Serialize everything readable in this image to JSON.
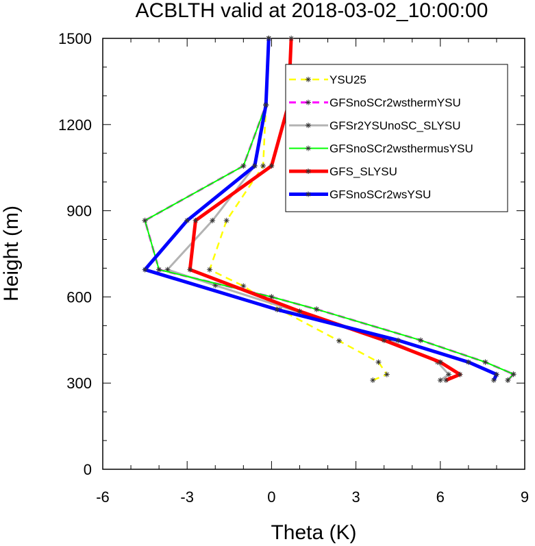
{
  "chart_data": {
    "type": "line",
    "title": "ACBLTH valid at 2018-03-02_10:00:00",
    "xlabel": "Theta (K)",
    "ylabel": "Height (m)",
    "xlim": [
      -6,
      9
    ],
    "ylim": [
      0,
      1500
    ],
    "xticks": [
      "-6",
      "-3",
      "0",
      "3",
      "6",
      "9"
    ],
    "yticks": [
      "0",
      "300",
      "600",
      "900",
      "1200",
      "1500"
    ],
    "grid": false,
    "legend_position": "top-right",
    "series": [
      {
        "name": "YSU25",
        "color": "#ffff00",
        "dash": "dashed",
        "width": 2.5,
        "points": [
          [
            3.6,
            310
          ],
          [
            4.1,
            330
          ],
          [
            3.8,
            373
          ],
          [
            2.4,
            447
          ],
          [
            0.3,
            556
          ],
          [
            -1.0,
            638
          ],
          [
            -2.2,
            695
          ],
          [
            -1.6,
            866
          ],
          [
            -0.3,
            1056
          ],
          [
            -0.2,
            1268
          ],
          [
            -0.1,
            1500
          ]
        ]
      },
      {
        "name": "GFSnoSCr2wsthermYSU",
        "color": "#ff00ff",
        "dash": "dashed",
        "width": 3,
        "points": [
          [
            8.4,
            310
          ],
          [
            8.6,
            331
          ],
          [
            7.6,
            373
          ],
          [
            5.3,
            449
          ],
          [
            1.6,
            557
          ],
          [
            0.0,
            600
          ],
          [
            -4.0,
            695
          ],
          [
            -4.5,
            866
          ],
          [
            -1.0,
            1056
          ],
          [
            -0.2,
            1268
          ],
          [
            -0.1,
            1500
          ]
        ]
      },
      {
        "name": "GFSr2YSUnoSC_SLYSU",
        "color": "#b3b3b3",
        "dash": "solid",
        "width": 3,
        "points": [
          [
            6.0,
            310
          ],
          [
            6.3,
            330
          ],
          [
            5.9,
            373
          ],
          [
            4.2,
            449
          ],
          [
            1.2,
            540
          ],
          [
            -2.0,
            640
          ],
          [
            -3.7,
            695
          ],
          [
            -2.1,
            866
          ],
          [
            -0.6,
            1056
          ],
          [
            -0.2,
            1268
          ],
          [
            -0.1,
            1500
          ]
        ]
      },
      {
        "name": "GFSnoSCr2wsthermusYSU",
        "color": "#00ff00",
        "dash": "solid",
        "width": 2,
        "points": [
          [
            8.4,
            310
          ],
          [
            8.6,
            331
          ],
          [
            7.6,
            373
          ],
          [
            5.3,
            449
          ],
          [
            1.6,
            557
          ],
          [
            0.0,
            600
          ],
          [
            -4.0,
            695
          ],
          [
            -4.5,
            866
          ],
          [
            -1.0,
            1056
          ],
          [
            -0.2,
            1268
          ],
          [
            -0.1,
            1500
          ]
        ]
      },
      {
        "name": "GFS_SLYSU",
        "color": "#ff0000",
        "dash": "solid",
        "width": 5,
        "points": [
          [
            6.2,
            310
          ],
          [
            6.7,
            330
          ],
          [
            6.0,
            373
          ],
          [
            4.0,
            449
          ],
          [
            1.0,
            550
          ],
          [
            -2.9,
            695
          ],
          [
            -2.7,
            866
          ],
          [
            0.0,
            1056
          ],
          [
            0.6,
            1268
          ],
          [
            0.7,
            1500
          ]
        ]
      },
      {
        "name": "GFSnoSCr2wsYSU",
        "color": "#0000ff",
        "dash": "solid",
        "width": 5,
        "points": [
          [
            7.9,
            310
          ],
          [
            8.0,
            330
          ],
          [
            7.0,
            373
          ],
          [
            4.5,
            449
          ],
          [
            0.2,
            556
          ],
          [
            -4.5,
            695
          ],
          [
            -3.0,
            866
          ],
          [
            -0.6,
            1056
          ],
          [
            -0.2,
            1268
          ],
          [
            -0.1,
            1500
          ]
        ]
      }
    ]
  }
}
